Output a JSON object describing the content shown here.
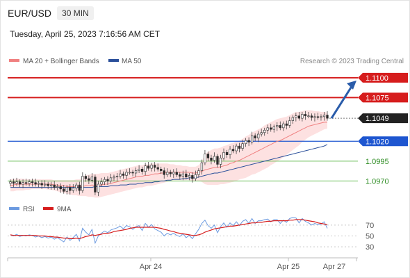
{
  "header": {
    "symbol": "EUR/USD",
    "interval": "30 MIN"
  },
  "timestamp": "Tuesday, April 25, 2023 7:16:56 AM CET",
  "legend": {
    "ma20": "MA 20 + Bollinger Bands",
    "ma50": "MA 50",
    "rsi": "RSI",
    "ma9": "9MA"
  },
  "credit": "Research © 2023 Trading Central",
  "colors": {
    "up": "#e8141e",
    "down": "#d0141e",
    "bb_fill": "#fde1e1",
    "ma20": "#f08080",
    "ma50": "#2a4f9a",
    "rsi": "#6b9ae0",
    "ma9": "#d61d1d",
    "resistance": "#d61d1d",
    "pivot": "#1e56d0",
    "support": "#6cbf5a",
    "arrow": "#2a5caa"
  },
  "chart_data": {
    "type": "candlestick",
    "price_range": [
      1.0945,
      1.1113
    ],
    "x_labels": [
      "Apr 24",
      "Apr 25",
      "Apr 27"
    ],
    "levels": [
      {
        "value": "1.1100",
        "label": "1.1100",
        "kind": "resistance"
      },
      {
        "value": "1.1075",
        "label": "1.1075",
        "kind": "resistance"
      },
      {
        "value": "1.1049",
        "label": "1.1049",
        "kind": "last"
      },
      {
        "value": "1.1020",
        "label": "1.1020",
        "kind": "pivot"
      },
      {
        "value": "1.0995",
        "label": "1.0995",
        "kind": "support"
      },
      {
        "value": "1.0970",
        "label": "1.0970",
        "kind": "support"
      }
    ],
    "close": [
      1.0969,
      1.0967,
      1.0969,
      1.0966,
      1.0968,
      1.0967,
      1.0969,
      1.0968,
      1.0966,
      1.0967,
      1.0965,
      1.0966,
      1.0964,
      1.0965,
      1.0962,
      1.0963,
      1.096,
      1.0957,
      1.0962,
      1.0958,
      1.0961,
      1.0965,
      1.0958,
      1.0976,
      1.0973,
      1.0971,
      1.0975,
      1.0956,
      1.0966,
      1.0969,
      1.0972,
      1.097,
      1.0974,
      1.0975,
      1.0976,
      1.0979,
      1.0977,
      1.0981,
      1.0981,
      1.098,
      1.0983,
      1.0985,
      1.0982,
      1.0989,
      1.0986,
      1.099,
      1.0987,
      1.0985,
      1.0983,
      1.0978,
      1.0981,
      1.0979,
      1.0981,
      1.0978,
      1.0976,
      1.0979,
      1.0975,
      1.0977,
      1.0973,
      1.0978,
      1.0983,
      1.0993,
      1.1004,
      1.0999,
      1.0996,
      1.1001,
      1.0991,
      1.0999,
      1.1006,
      1.1003,
      1.101,
      1.1008,
      1.1014,
      1.1011,
      1.1017,
      1.1021,
      1.1019,
      1.1027,
      1.1024,
      1.1029,
      1.1031,
      1.1034,
      1.1037,
      1.1035,
      1.1038,
      1.104,
      1.1037,
      1.1042,
      1.104,
      1.1046,
      1.105,
      1.1052,
      1.1049,
      1.1054,
      1.1052,
      1.1052,
      1.105,
      1.1051,
      1.105,
      1.1051,
      1.1053,
      1.1049
    ],
    "ma20": [
      1.0964,
      1.0965,
      1.0966,
      1.0966,
      1.0966,
      1.0966,
      1.0966,
      1.0966,
      1.0966,
      1.0966,
      1.0966,
      1.0966,
      1.0966,
      1.0966,
      1.0965,
      1.0965,
      1.0964,
      1.0964,
      1.0963,
      1.0963,
      1.0963,
      1.0963,
      1.0963,
      1.0963,
      1.0964,
      1.0964,
      1.0965,
      1.0964,
      1.0964,
      1.0965,
      1.0966,
      1.0966,
      1.0967,
      1.0968,
      1.0969,
      1.097,
      1.0971,
      1.0972,
      1.0973,
      1.0974,
      1.0975,
      1.0976,
      1.0976,
      1.0977,
      1.0977,
      1.0978,
      1.0979,
      1.0979,
      1.098,
      1.098,
      1.0981,
      1.0981,
      1.0981,
      1.0981,
      1.0981,
      1.0981,
      1.0981,
      1.0981,
      1.098,
      1.098,
      1.0981,
      1.0982,
      1.0984,
      1.0985,
      1.0986,
      1.0987,
      1.0987,
      1.0988,
      1.0989,
      1.099,
      1.0992,
      1.0993,
      1.0995,
      1.0996,
      1.0998,
      1.1,
      1.1002,
      1.1004,
      1.1006,
      1.1008,
      1.101,
      1.1012,
      1.1014,
      1.1016,
      1.1018,
      1.102,
      1.1021,
      1.1023,
      1.1025,
      1.1027,
      1.1029,
      1.1031,
      1.1033,
      1.1035,
      1.1037,
      1.1039,
      1.104,
      1.1041,
      1.1042,
      1.1043,
      1.1044,
      1.1044
    ],
    "bb_upper": [
      1.0972,
      1.0973,
      1.0973,
      1.0973,
      1.0973,
      1.0972,
      1.0972,
      1.0972,
      1.0972,
      1.0972,
      1.0972,
      1.0972,
      1.0972,
      1.0972,
      1.0971,
      1.0971,
      1.0971,
      1.0971,
      1.0971,
      1.0971,
      1.0971,
      1.0972,
      1.0972,
      1.0975,
      1.0977,
      1.0978,
      1.0979,
      1.0979,
      1.0979,
      1.098,
      1.098,
      1.098,
      1.0981,
      1.0982,
      1.0983,
      1.0984,
      1.0985,
      1.0986,
      1.0987,
      1.0988,
      1.0989,
      1.099,
      1.099,
      1.0991,
      1.0991,
      1.0992,
      1.0992,
      1.0992,
      1.0992,
      1.0992,
      1.0992,
      1.0991,
      1.0991,
      1.099,
      1.099,
      1.0989,
      1.0989,
      1.0988,
      1.0988,
      1.0988,
      1.099,
      1.0995,
      1.1003,
      1.1007,
      1.1009,
      1.1011,
      1.1011,
      1.1012,
      1.1014,
      1.1015,
      1.1017,
      1.1018,
      1.102,
      1.1021,
      1.1023,
      1.1026,
      1.1028,
      1.1031,
      1.1033,
      1.1035,
      1.1037,
      1.104,
      1.1042,
      1.1044,
      1.1046,
      1.1048,
      1.1049,
      1.105,
      1.1051,
      1.1053,
      1.1055,
      1.1057,
      1.1057,
      1.1058,
      1.1059,
      1.1059,
      1.1059,
      1.1058,
      1.1058,
      1.1057,
      1.1057,
      1.1056
    ],
    "bb_lower": [
      1.0957,
      1.0957,
      1.0958,
      1.0958,
      1.0958,
      1.0959,
      1.0959,
      1.096,
      1.096,
      1.096,
      1.096,
      1.096,
      1.0959,
      1.0959,
      1.0958,
      1.0957,
      1.0956,
      1.0955,
      1.0954,
      1.0953,
      1.0952,
      1.0952,
      1.0951,
      1.0951,
      1.0951,
      1.095,
      1.095,
      1.0949,
      1.0949,
      1.095,
      1.0951,
      1.0952,
      1.0953,
      1.0954,
      1.0955,
      1.0956,
      1.0957,
      1.0958,
      1.0959,
      1.096,
      1.0961,
      1.0962,
      1.0962,
      1.0963,
      1.0964,
      1.0964,
      1.0965,
      1.0966,
      1.0967,
      1.0968,
      1.0969,
      1.097,
      1.0971,
      1.0971,
      1.0971,
      1.0971,
      1.0971,
      1.0971,
      1.097,
      1.097,
      1.097,
      1.0969,
      1.0966,
      1.0965,
      1.0965,
      1.0965,
      1.0965,
      1.0966,
      1.0966,
      1.0967,
      1.0968,
      1.0969,
      1.097,
      1.0972,
      1.0973,
      1.0974,
      1.0976,
      1.0978,
      1.0979,
      1.0981,
      1.0983,
      1.0985,
      1.0987,
      1.099,
      1.0992,
      1.0995,
      1.0997,
      1.1,
      1.1003,
      1.1006,
      1.1009,
      1.1012,
      1.1015,
      1.1019,
      1.1022,
      1.1025,
      1.1027,
      1.1029,
      1.1031,
      1.1033,
      1.1035,
      1.1036
    ],
    "ma50": [
      1.0962,
      1.0962,
      1.0962,
      1.0962,
      1.0962,
      1.0962,
      1.0962,
      1.0962,
      1.0962,
      1.0962,
      1.0962,
      1.0962,
      1.0962,
      1.0962,
      1.0962,
      1.0962,
      1.0962,
      1.0962,
      1.0962,
      1.0962,
      1.0962,
      1.0962,
      1.0962,
      1.0962,
      1.0962,
      1.0962,
      1.0962,
      1.0963,
      1.0963,
      1.0963,
      1.0963,
      1.0963,
      1.0964,
      1.0964,
      1.0964,
      1.0965,
      1.0965,
      1.0965,
      1.0966,
      1.0966,
      1.0966,
      1.0967,
      1.0967,
      1.0968,
      1.0968,
      1.0968,
      1.0969,
      1.0969,
      1.097,
      1.097,
      1.0971,
      1.0971,
      1.0972,
      1.0972,
      1.0972,
      1.0973,
      1.0973,
      1.0974,
      1.0974,
      1.0974,
      1.0975,
      1.0976,
      1.0977,
      1.0978,
      1.0979,
      1.098,
      1.098,
      1.0981,
      1.0982,
      1.0983,
      1.0984,
      1.0985,
      1.0986,
      1.0987,
      1.0988,
      1.0989,
      1.099,
      1.0991,
      1.0992,
      1.0993,
      1.0994,
      1.0995,
      1.0996,
      1.0997,
      1.0998,
      1.0999,
      1.1,
      1.1001,
      1.1002,
      1.1003,
      1.1004,
      1.1005,
      1.1006,
      1.1007,
      1.1008,
      1.1009,
      1.101,
      1.1011,
      1.1012,
      1.1013,
      1.1014,
      1.1016
    ],
    "rsi": {
      "levels": [
        "70",
        "50",
        "30"
      ],
      "rsi": [
        52,
        50,
        53,
        49,
        51,
        50,
        52,
        51,
        48,
        50,
        47,
        49,
        46,
        48,
        44,
        47,
        43,
        39,
        48,
        42,
        47,
        53,
        41,
        64,
        57,
        52,
        62,
        37,
        50,
        55,
        59,
        56,
        61,
        63,
        65,
        68,
        63,
        69,
        67,
        62,
        67,
        69,
        60,
        73,
        66,
        71,
        63,
        60,
        57,
        50,
        55,
        52,
        55,
        51,
        49,
        54,
        47,
        51,
        45,
        54,
        62,
        73,
        79,
        69,
        64,
        70,
        56,
        67,
        74,
        66,
        74,
        69,
        76,
        69,
        77,
        80,
        73,
        82,
        73,
        78,
        78,
        80,
        81,
        76,
        80,
        80,
        73,
        79,
        75,
        82,
        84,
        83,
        74,
        82,
        77,
        74,
        70,
        73,
        71,
        72,
        76,
        64
      ],
      "ma9": [
        52,
        51,
        51,
        51,
        51,
        51,
        51,
        51,
        51,
        50,
        50,
        50,
        49,
        49,
        48,
        48,
        47,
        46,
        46,
        45,
        45,
        46,
        45,
        47,
        49,
        50,
        52,
        51,
        52,
        53,
        55,
        55,
        56,
        58,
        59,
        60,
        61,
        62,
        64,
        65,
        66,
        66,
        66,
        66,
        66,
        66,
        66,
        65,
        64,
        62,
        61,
        59,
        58,
        56,
        55,
        54,
        53,
        52,
        51,
        51,
        52,
        54,
        57,
        59,
        61,
        63,
        64,
        65,
        66,
        67,
        68,
        68,
        69,
        70,
        71,
        72,
        73,
        74,
        74,
        75,
        75,
        76,
        77,
        77,
        78,
        78,
        78,
        78,
        78,
        79,
        79,
        80,
        80,
        80,
        79,
        78,
        77,
        76,
        74,
        73,
        72,
        71
      ]
    }
  }
}
